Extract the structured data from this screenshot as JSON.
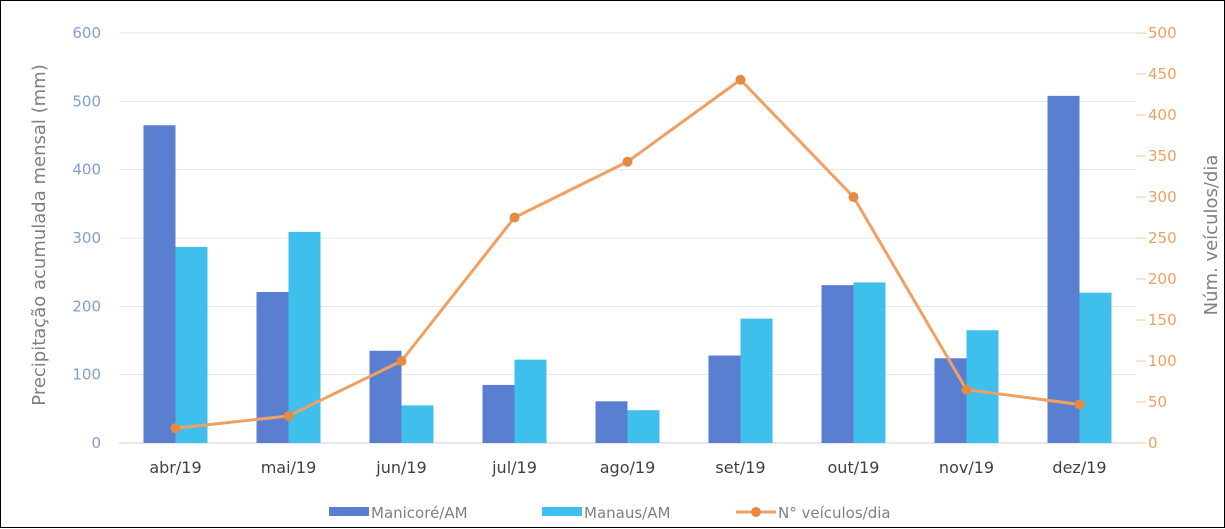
{
  "chart_data": {
    "type": "bar",
    "categories": [
      "abr/19",
      "mai/19",
      "jun/19",
      "jul/19",
      "ago/19",
      "set/19",
      "out/19",
      "nov/19",
      "dez/19"
    ],
    "series": [
      {
        "name": "Manicoré/AM",
        "type": "bar",
        "axis": "left",
        "color": "#5a7fd0",
        "values": [
          465,
          221,
          135,
          85,
          61,
          128,
          231,
          124,
          508
        ]
      },
      {
        "name": "Manaus/AM",
        "type": "bar",
        "axis": "left",
        "color": "#3fc0ec",
        "values": [
          287,
          309,
          55,
          122,
          48,
          182,
          235,
          165,
          220
        ]
      },
      {
        "name": "N° veículos/dia",
        "type": "line",
        "axis": "right",
        "color": "#f0a060",
        "values": [
          18,
          33,
          100,
          275,
          343,
          443,
          300,
          65,
          47
        ]
      }
    ],
    "ylabel": "Precipitação acumulada mensal (mm)",
    "y2label": "Núm. veículos/dia",
    "ylim": [
      0,
      600
    ],
    "y2lim": [
      0,
      500
    ],
    "yticks": [
      "0",
      "100",
      "200",
      "300",
      "400",
      "500",
      "600"
    ],
    "y2ticks": [
      "0",
      "50",
      "100",
      "150",
      "200",
      "250",
      "300",
      "350",
      "400",
      "450",
      "500"
    ],
    "grid": true,
    "legend_position": "bottom"
  }
}
